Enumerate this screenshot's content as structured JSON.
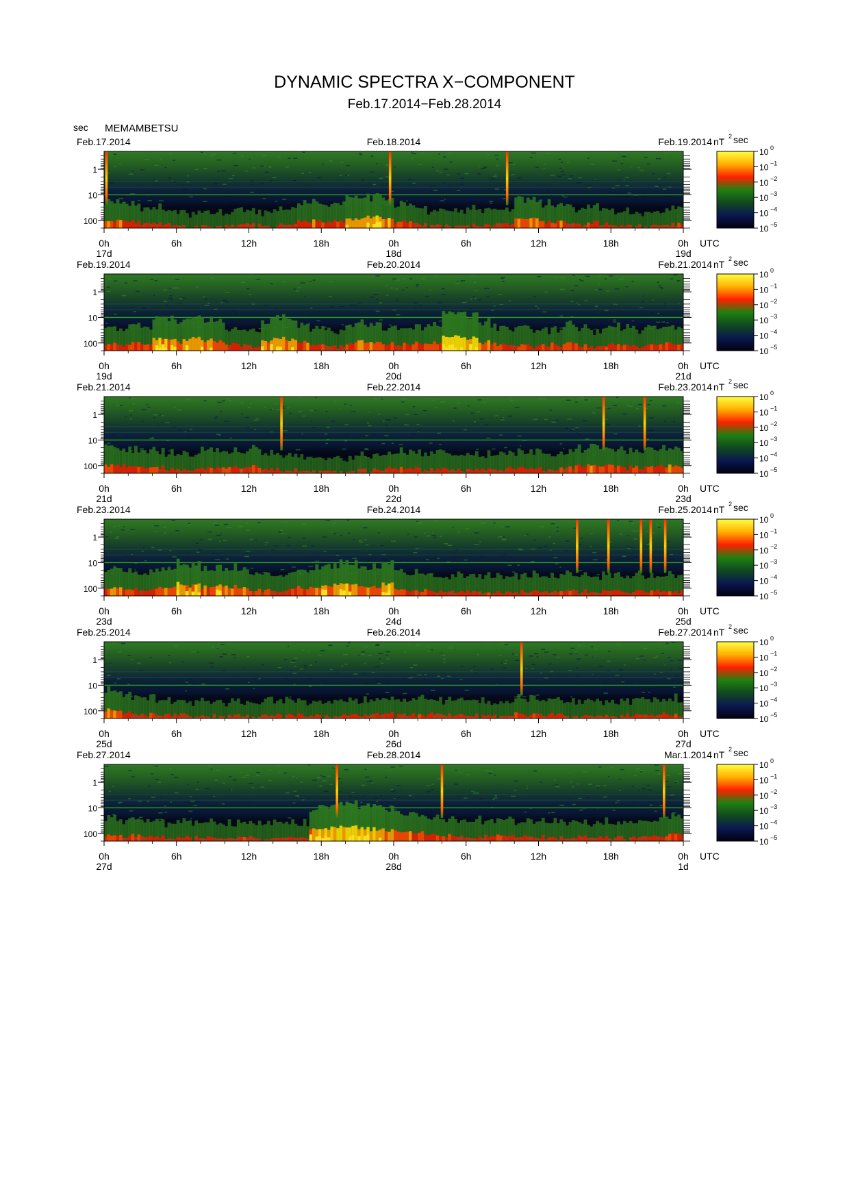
{
  "title": "DYNAMIC SPECTRA X−COMPONENT",
  "subtitle": "Feb.17.2014−Feb.28.2014",
  "station": "MEMAMBETSU",
  "period_unit": "sec",
  "colorbar": {
    "unit": "nT",
    "unit_sup": "2",
    "unit_suffix": "sec",
    "base": "10",
    "exponents": [
      "0",
      "−1",
      "−2",
      "−3",
      "−4",
      "−5"
    ],
    "colors": [
      "#ffff40",
      "#ffb000",
      "#ff2000",
      "#208010",
      "#104a20",
      "#0a1850",
      "#000010"
    ]
  },
  "chart_data": {
    "type": "heatmap",
    "title": "DYNAMIC SPECTRA X−COMPONENT",
    "subtitle": "Feb.17.2014−Feb.28.2014",
    "y_axis": {
      "label": "sec",
      "scale": "log",
      "range": [
        0.2,
        200
      ],
      "ticks": [
        "1",
        "10",
        "100"
      ]
    },
    "x_axis": {
      "ticks": [
        "0h",
        "6h",
        "12h",
        "18h",
        "0h",
        "6h",
        "12h",
        "18h",
        "0h"
      ],
      "suffix": "UTC"
    },
    "color_scale": {
      "unit": "nT^2 sec",
      "scale": "log",
      "range": [
        1e-05,
        1
      ]
    },
    "panels": [
      {
        "start_label": "Feb.17.2014",
        "mid_label": "Feb.18.2014",
        "end_label": "Feb.19.2014",
        "day_labels": [
          "17d",
          "18d",
          "19d"
        ],
        "activity": [
          0.7,
          0.65,
          0.55,
          0.5,
          0.5,
          0.4,
          0.4,
          0.35,
          0.4,
          0.35,
          0.35,
          0.45,
          0.45,
          0.4,
          0.45,
          0.5,
          0.6,
          0.6,
          0.6,
          0.65,
          0.75,
          0.8,
          0.8,
          0.75,
          0.6,
          0.5,
          0.45,
          0.45,
          0.4,
          0.4,
          0.45,
          0.45,
          0.45,
          0.5,
          0.7,
          0.75,
          0.6,
          0.6,
          0.55,
          0.5,
          0.5,
          0.45,
          0.4,
          0.4,
          0.35,
          0.4,
          0.45,
          0.45
        ],
        "events_hours": [
          0.2,
          23.7,
          33.4
        ]
      },
      {
        "start_label": "Feb.19.2014",
        "mid_label": "Feb.20.2014",
        "end_label": "Feb.21.2014",
        "day_labels": [
          "19d",
          "20d",
          "21d"
        ],
        "activity": [
          0.65,
          0.55,
          0.65,
          0.55,
          0.85,
          0.85,
          0.75,
          0.85,
          0.8,
          0.7,
          0.55,
          0.55,
          0.55,
          0.75,
          0.9,
          0.75,
          0.65,
          0.55,
          0.55,
          0.5,
          0.6,
          0.7,
          0.7,
          0.6,
          0.55,
          0.6,
          0.6,
          0.65,
          1.0,
          0.95,
          0.9,
          0.7,
          0.6,
          0.55,
          0.55,
          0.5,
          0.5,
          0.55,
          0.65,
          0.55,
          0.5,
          0.5,
          0.6,
          0.55,
          0.5,
          0.55,
          0.6,
          0.55
        ],
        "events_hours": []
      },
      {
        "start_label": "Feb.21.2014",
        "mid_label": "Feb.22.2014",
        "end_label": "Feb.23.2014",
        "day_labels": [
          "21d",
          "22d",
          "23d"
        ],
        "activity": [
          0.65,
          0.6,
          0.6,
          0.55,
          0.55,
          0.5,
          0.5,
          0.45,
          0.55,
          0.5,
          0.55,
          0.5,
          0.6,
          0.5,
          0.45,
          0.45,
          0.4,
          0.4,
          0.35,
          0.35,
          0.35,
          0.4,
          0.45,
          0.5,
          0.55,
          0.5,
          0.5,
          0.5,
          0.45,
          0.45,
          0.45,
          0.45,
          0.45,
          0.5,
          0.5,
          0.5,
          0.5,
          0.5,
          0.55,
          0.65,
          0.65,
          0.6,
          0.6,
          0.55,
          0.55,
          0.6,
          0.6,
          0.65
        ],
        "events_hours": [
          14.7,
          41.4,
          44.8
        ]
      },
      {
        "start_label": "Feb.23.2014",
        "mid_label": "Feb.24.2014",
        "end_label": "Feb.25.2014",
        "day_labels": [
          "23d",
          "24d",
          "25d"
        ],
        "activity": [
          0.7,
          0.65,
          0.65,
          0.6,
          0.65,
          0.75,
          0.85,
          0.8,
          0.7,
          0.75,
          0.7,
          0.65,
          0.55,
          0.55,
          0.55,
          0.6,
          0.65,
          0.75,
          0.8,
          0.85,
          0.85,
          0.75,
          0.75,
          0.85,
          0.6,
          0.55,
          0.55,
          0.5,
          0.5,
          0.5,
          0.5,
          0.45,
          0.45,
          0.45,
          0.5,
          0.5,
          0.5,
          0.55,
          0.55,
          0.5,
          0.5,
          0.5,
          0.5,
          0.5,
          0.5,
          0.5,
          0.5,
          0.5
        ],
        "events_hours": [
          39.2,
          41.8,
          44.5,
          45.3,
          46.5
        ]
      },
      {
        "start_label": "Feb.25.2014",
        "mid_label": "Feb.26.2014",
        "end_label": "Feb.27.2014",
        "day_labels": [
          "25d",
          "26d",
          "27d"
        ],
        "activity": [
          0.7,
          0.6,
          0.55,
          0.5,
          0.5,
          0.45,
          0.45,
          0.4,
          0.4,
          0.4,
          0.4,
          0.4,
          0.4,
          0.4,
          0.45,
          0.45,
          0.4,
          0.4,
          0.4,
          0.4,
          0.45,
          0.45,
          0.5,
          0.5,
          0.45,
          0.45,
          0.45,
          0.45,
          0.45,
          0.45,
          0.4,
          0.4,
          0.4,
          0.45,
          0.5,
          0.5,
          0.45,
          0.45,
          0.4,
          0.4,
          0.4,
          0.4,
          0.4,
          0.4,
          0.45,
          0.45,
          0.45,
          0.5
        ],
        "events_hours": [
          34.6
        ]
      },
      {
        "start_label": "Feb.27.2014",
        "mid_label": "Feb.28.2014",
        "end_label": "Mar.1.2014",
        "day_labels": [
          "27d",
          "28d",
          "1d"
        ],
        "activity": [
          0.55,
          0.5,
          0.6,
          0.55,
          0.5,
          0.45,
          0.45,
          0.45,
          0.45,
          0.4,
          0.4,
          0.45,
          0.45,
          0.4,
          0.4,
          0.45,
          0.45,
          0.85,
          0.9,
          0.95,
          1.0,
          0.9,
          0.85,
          0.8,
          0.75,
          0.7,
          0.65,
          0.6,
          0.55,
          0.5,
          0.5,
          0.5,
          0.5,
          0.5,
          0.5,
          0.5,
          0.45,
          0.45,
          0.45,
          0.45,
          0.45,
          0.45,
          0.45,
          0.45,
          0.45,
          0.5,
          0.55,
          0.65
        ],
        "events_hours": [
          19.3,
          28.0,
          46.4
        ]
      }
    ]
  }
}
